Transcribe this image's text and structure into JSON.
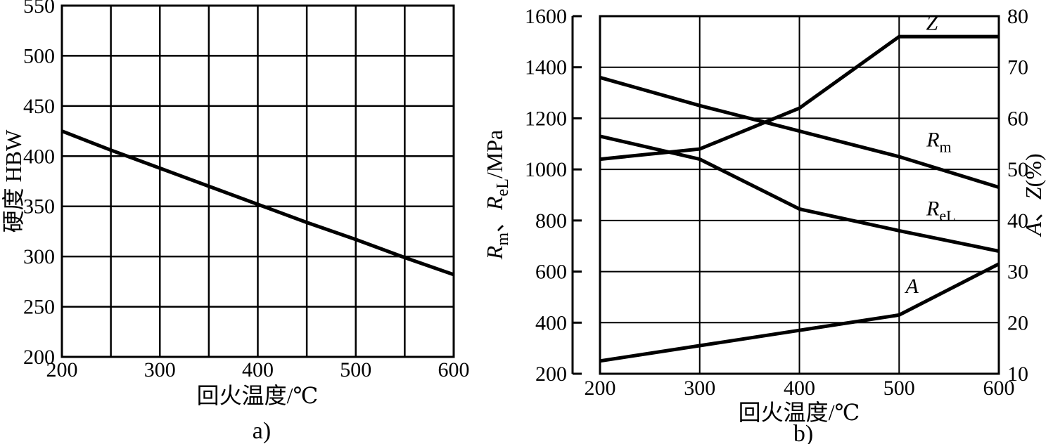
{
  "figure": {
    "background": "#ffffff",
    "line_color": "#000000",
    "description": "Two line charts of steel properties vs tempering temperature"
  },
  "chart_data": [
    {
      "id": "a",
      "type": "line",
      "caption": "a)",
      "xlabel": "回火温度/℃",
      "ylabel": "硬度  HBW",
      "xlim": [
        200,
        600
      ],
      "ylim": [
        200,
        550
      ],
      "x_grid_step": 50,
      "y_grid_step": 50,
      "grid": true,
      "x_tick_labels": [
        200,
        300,
        400,
        500,
        600
      ],
      "y_tick_labels": [
        200,
        250,
        300,
        350,
        400,
        450,
        500,
        550
      ],
      "x": [
        200,
        250,
        300,
        350,
        400,
        450,
        500,
        550,
        600
      ],
      "series": [
        {
          "name": "hardness-HBW",
          "values": [
            425,
            406,
            388,
            370,
            352,
            334,
            317,
            299,
            282
          ]
        }
      ]
    },
    {
      "id": "b",
      "type": "line",
      "caption": "b)",
      "xlabel": "回火温度/℃",
      "ylabel_left": "Rm、ReL/MPa",
      "ylabel_left_parts": [
        {
          "t": "R",
          "s": "i"
        },
        {
          "t": "m",
          "s": "sub"
        },
        {
          "t": "、",
          "s": "n"
        },
        {
          "t": "R",
          "s": "i"
        },
        {
          "t": "eL",
          "s": "sub"
        },
        {
          "t": "/MPa",
          "s": "n"
        }
      ],
      "ylabel_right": "A、Z(%)",
      "ylabel_right_parts": [
        {
          "t": "A",
          "s": "i"
        },
        {
          "t": "、",
          "s": "n"
        },
        {
          "t": "Z",
          "s": "i"
        },
        {
          "t": "(%)",
          "s": "n"
        }
      ],
      "xlim": [
        200,
        600
      ],
      "ylim_left": [
        200,
        1600
      ],
      "ylim_right": [
        10,
        80
      ],
      "grid": true,
      "x_tick_labels": [
        200,
        300,
        400,
        500,
        600
      ],
      "x_grid_lines": [
        300,
        400,
        500
      ],
      "left_tick_labels": [
        200,
        400,
        600,
        800,
        1000,
        1200,
        1400,
        1600
      ],
      "right_tick_labels": [
        10,
        20,
        30,
        40,
        50,
        60,
        70,
        80
      ],
      "right_grid_lines": [
        20,
        30,
        40,
        50,
        60,
        70
      ],
      "x": [
        200,
        300,
        400,
        500,
        600
      ],
      "series": [
        {
          "name": "Rm",
          "axis": "left",
          "values": [
            1360,
            1250,
            1150,
            1050,
            930
          ],
          "label_parts": [
            {
              "t": "R",
              "s": "i"
            },
            {
              "t": "m",
              "s": "sub"
            }
          ],
          "label_pos": {
            "x": 540,
            "v": 1090
          }
        },
        {
          "name": "ReL",
          "axis": "left",
          "values": [
            1130,
            1040,
            845,
            760,
            680
          ],
          "label_parts": [
            {
              "t": "R",
              "s": "i"
            },
            {
              "t": "eL",
              "s": "sub"
            }
          ],
          "label_pos": {
            "x": 542,
            "v": 820
          }
        },
        {
          "name": "Z",
          "axis": "right",
          "values": [
            52,
            54,
            62,
            76,
            76
          ],
          "label_parts": [
            {
              "t": "Z",
              "s": "i"
            }
          ],
          "label_pos": {
            "x": 533,
            "v": 77.3
          }
        },
        {
          "name": "A",
          "axis": "right",
          "values": [
            12.5,
            15.5,
            18.5,
            21.5,
            31.5
          ],
          "label_parts": [
            {
              "t": "A",
              "s": "i"
            }
          ],
          "label_pos": {
            "x": 513,
            "v": 25.8
          }
        }
      ]
    }
  ]
}
